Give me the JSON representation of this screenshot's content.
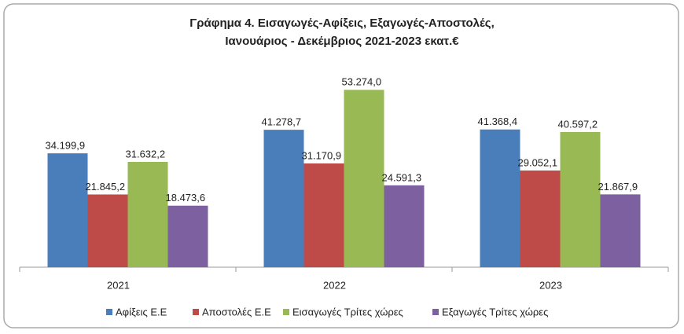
{
  "chart_data": {
    "type": "bar",
    "title": [
      "Γράφημα 4. Εισαγωγές-Αφίξεις, Εξαγωγές-Αποστολές,",
      "Ιανουάριος - Δεκέμβριος 2021-2023 εκατ.€"
    ],
    "categories": [
      "2021",
      "2022",
      "2023"
    ],
    "ylim": [
      0,
      55000
    ],
    "legend": "bottom",
    "series": [
      {
        "name": "Αφίξεις Ε.Ε",
        "color": "#4a7ebb",
        "values": [
          34199.9,
          41278.7,
          41368.4
        ],
        "value_labels": [
          "34.199,9",
          "41.278,7",
          "41.368,4"
        ]
      },
      {
        "name": "Αποστολές Ε.Ε",
        "color": "#be4b48",
        "values": [
          21845.2,
          31170.9,
          29052.1
        ],
        "value_labels": [
          "21.845,2",
          "31.170,9",
          "29.052,1"
        ]
      },
      {
        "name": "Εισαγωγές Τρίτες χώρες",
        "color": "#98b954",
        "values": [
          31632.2,
          53274.0,
          40597.2
        ],
        "value_labels": [
          "31.632,2",
          "53.274,0",
          "40.597,2"
        ]
      },
      {
        "name": "Εξαγωγές Τρίτες χώρες",
        "color": "#7d60a0",
        "values": [
          18473.6,
          24591.3,
          21867.9
        ],
        "value_labels": [
          "18.473,6",
          "24.591,3",
          "21.867,9"
        ]
      }
    ]
  }
}
